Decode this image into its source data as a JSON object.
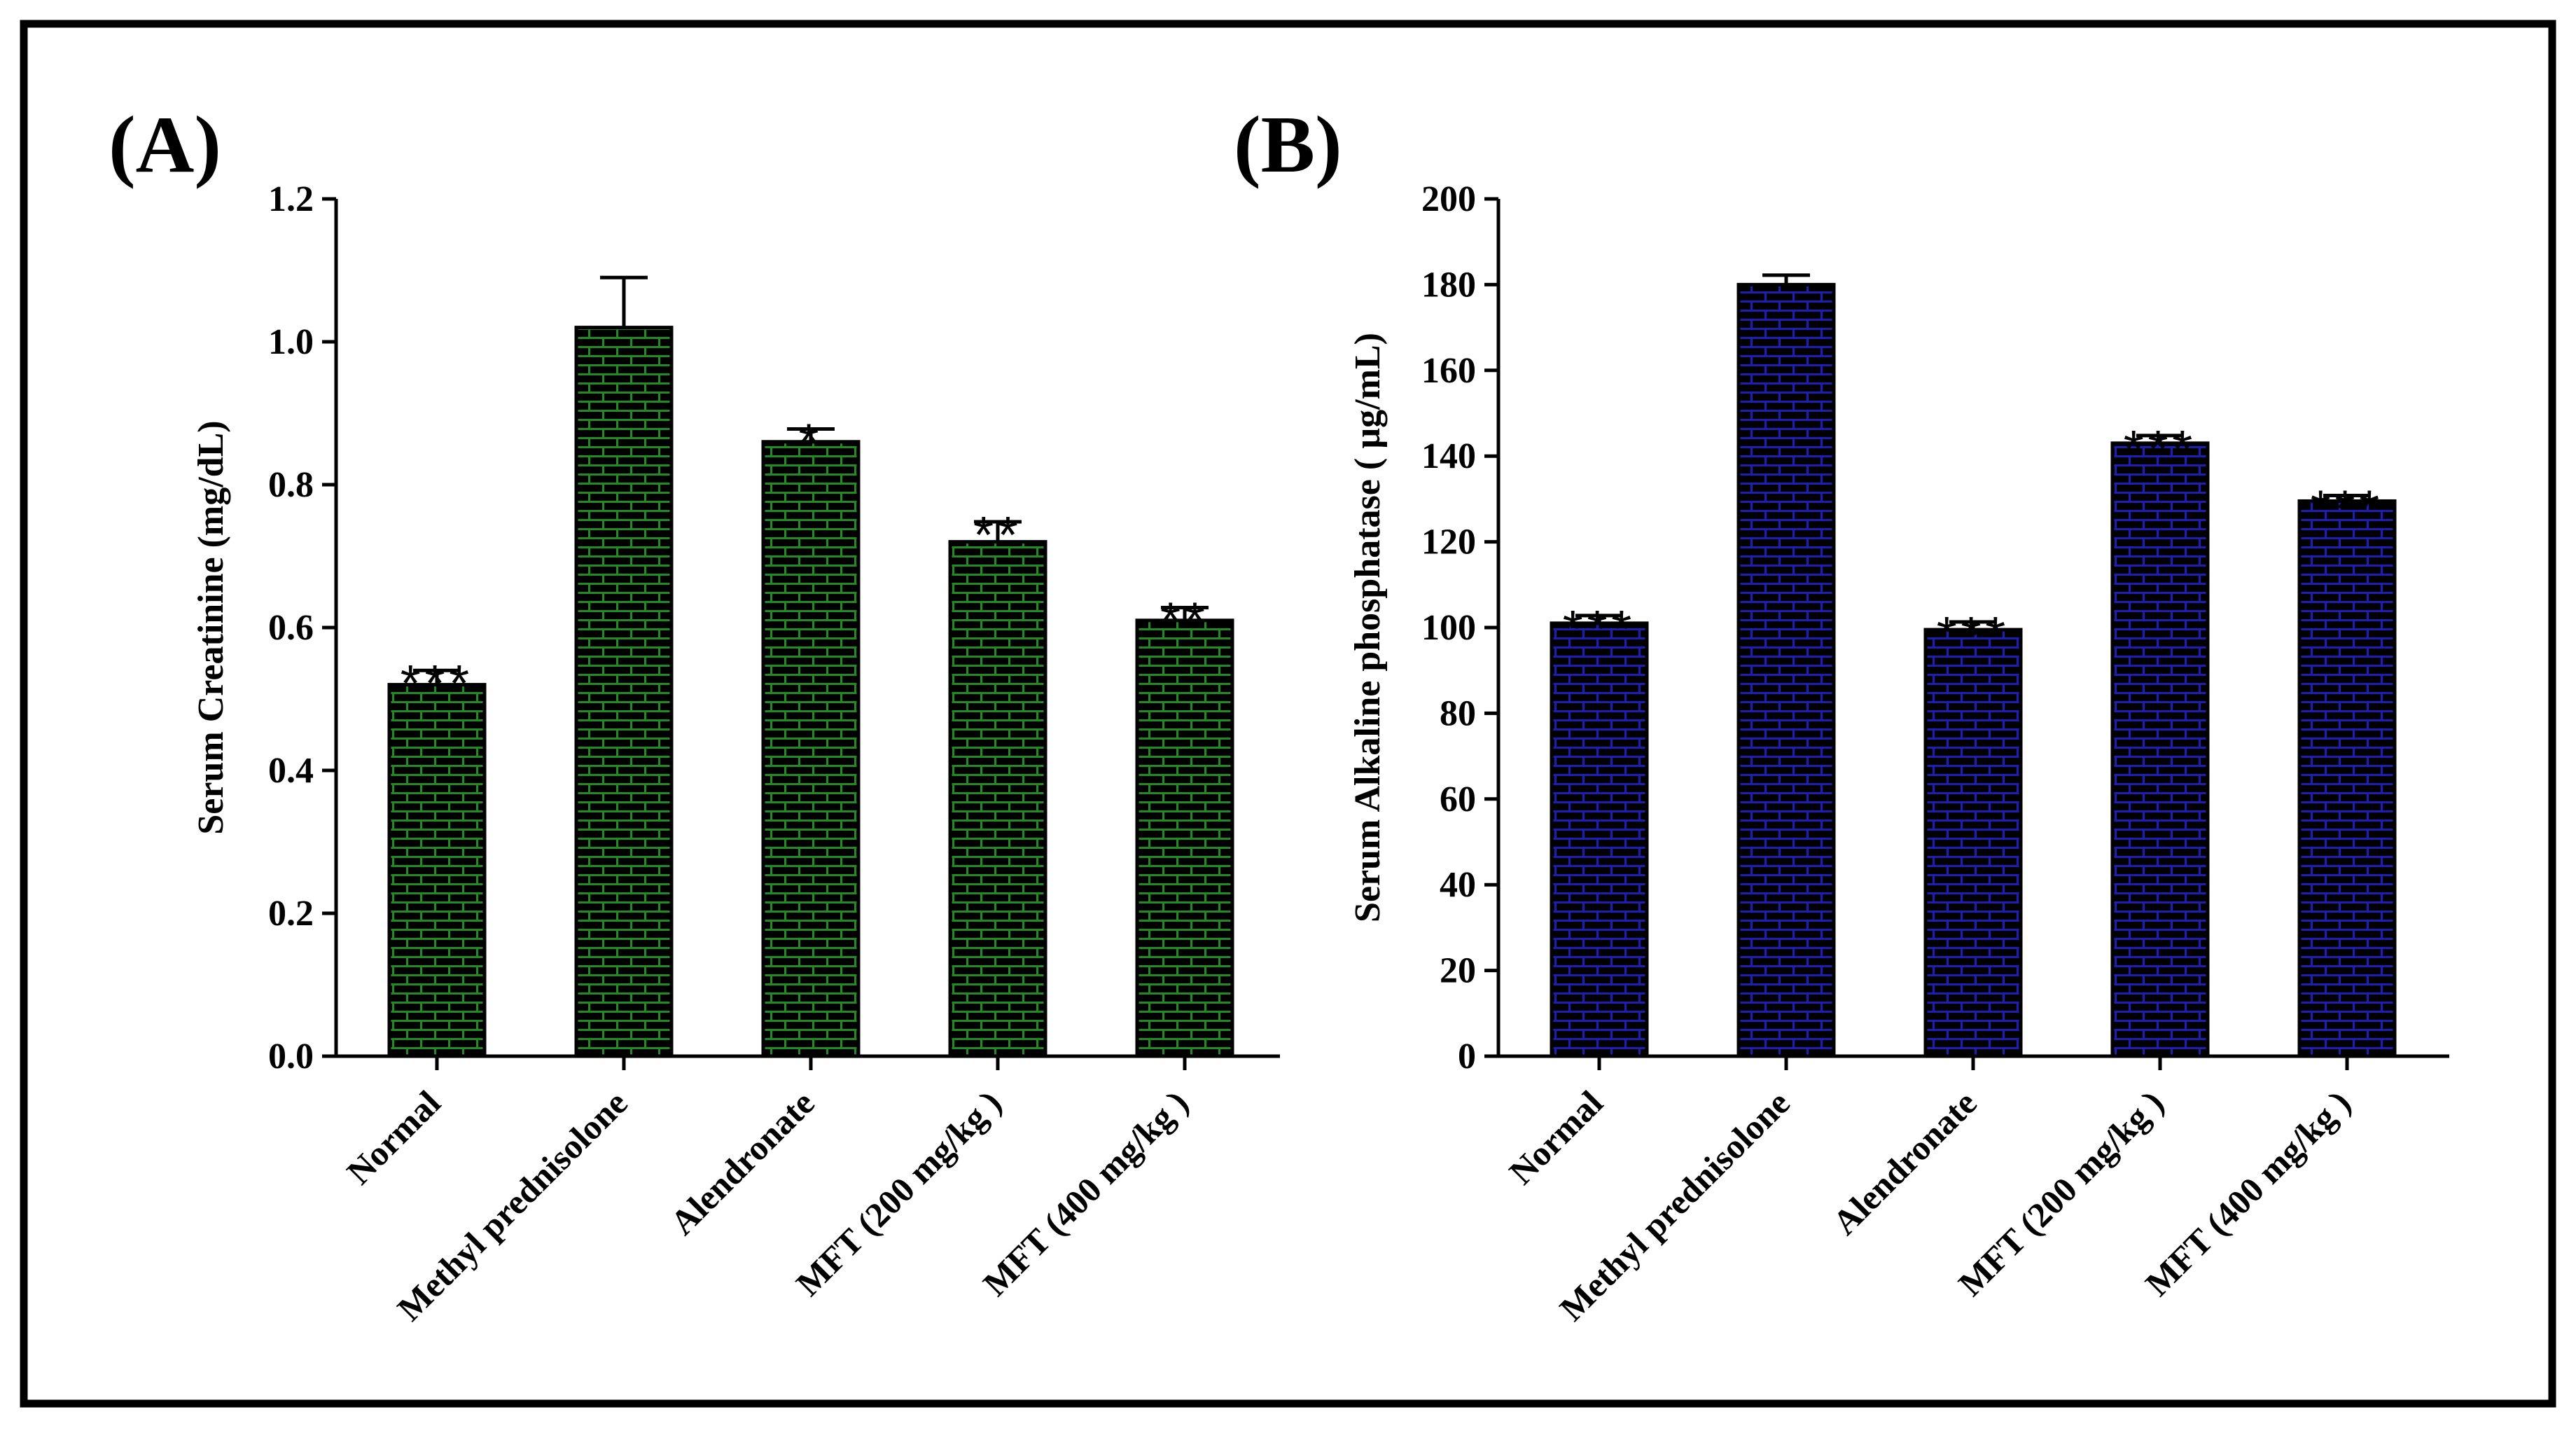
{
  "chart_data": [
    {
      "type": "bar",
      "panel_label": "(A)",
      "title": "",
      "xlabel": "",
      "ylabel": "Serum Creatinine (mg/dL)",
      "ylim": [
        0,
        1.2
      ],
      "yticks": [
        "0.0",
        "0.2",
        "0.4",
        "0.6",
        "0.8",
        "1.0",
        "1.2"
      ],
      "categories": [
        "Normal",
        "Methyl prednisolone",
        "Alendronate",
        "MFT (200 mg/kg )",
        "MFT (400 mg/kg )"
      ],
      "values": [
        0.52,
        1.02,
        0.86,
        0.72,
        0.61
      ],
      "errors": [
        0.02,
        0.07,
        0.018,
        0.028,
        0.018
      ],
      "significance": [
        "***",
        "",
        "*",
        "**",
        "**"
      ],
      "bar_color": "#228B22",
      "pattern": "brick"
    },
    {
      "type": "bar",
      "panel_label": "(B)",
      "title": "",
      "xlabel": "",
      "ylabel": "Serum Alkaline phosphatase ( µg/mL)",
      "ylim": [
        0,
        200
      ],
      "yticks": [
        "0",
        "20",
        "40",
        "60",
        "80",
        "100",
        "120",
        "140",
        "160",
        "180",
        "200"
      ],
      "categories": [
        "Normal",
        "Methyl prednisolone",
        "Alendronate",
        "MFT (200 mg/kg )",
        "MFT (400 mg/kg )"
      ],
      "values": [
        101,
        180,
        99.5,
        143,
        129.5
      ],
      "errors": [
        1.8,
        2.2,
        1.8,
        1.8,
        1.3
      ],
      "significance": [
        "***",
        "",
        "***",
        "***",
        "***"
      ],
      "bar_color": "#1E1EB4",
      "pattern": "brick"
    }
  ]
}
